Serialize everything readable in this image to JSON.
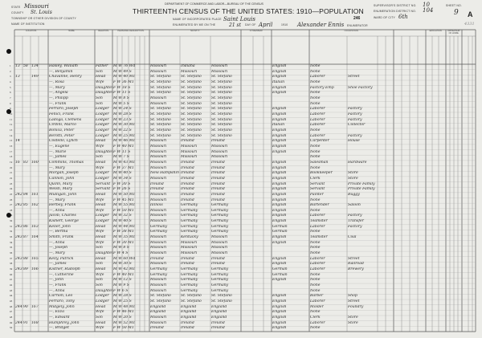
{
  "header": {
    "department": "DEPARTMENT OF COMMERCE AND LABOR—BUREAU OF THE CENSUS",
    "title": "THIRTEENTH CENSUS OF THE UNITED STATES: 1910—POPULATION",
    "state_label": "STATE",
    "state": "Missouri",
    "county_label": "COUNTY",
    "county": "St. Louis",
    "township_label": "TOWNSHIP OR OTHER DIVISION OF COUNTY",
    "institution_label": "NAME OF INSTITUTION",
    "place_label": "NAME OF INCORPORATED PLACE",
    "place": "Saint Louis",
    "enumerated_label": "ENUMERATED BY ME ON THE",
    "enumerated_day": "21 st",
    "day_label": "DAY OF",
    "month": "April",
    "year_suffix": "1910",
    "enumerator": "Alexander Ennis",
    "enumerator_label": "ENUMERATOR",
    "supervisor_district_label": "SUPERVISOR'S DISTRICT NO.",
    "supervisor_district": "10",
    "enumeration_district_label": "ENUMERATION DISTRICT NO.",
    "enumeration_district": "104",
    "ward_label": "WARD OF CITY",
    "ward": "6th",
    "stamp_number": "246",
    "sheet_label": "SHEET NO.",
    "sheet_number": "9",
    "sheet_letter": "A",
    "corner_note": "4331"
  },
  "column_groups": [
    "LOCATION.",
    "NAME",
    "RELATION.",
    "PERSONAL DESCRIPTION.",
    "NATIVITY.",
    "CITIZENSHIP.",
    "",
    "OCCUPATION.",
    "",
    "EDUCATION.",
    "OWNERSHIP OF HOME.",
    ""
  ],
  "rows": [
    [
      "13",
      "58",
      "134",
      "Hasley, William",
      "Father",
      "M W 76 Wd",
      "Missouri",
      "Indiana",
      "Missouri",
      "English",
      "None",
      ""
    ],
    [
      "",
      "",
      "",
      "—, Benjamin",
      "Son",
      "M W 49 S",
      "Missouri",
      "Missouri",
      "Missouri",
      "English",
      "None",
      ""
    ],
    [
      "13",
      "",
      "149",
      "Chavanne, Henry",
      "Head",
      "M W 40 M1",
      "St. Stefano",
      "St. Stefano",
      "St. Stefano",
      "English",
      "Laborer",
      "Street"
    ],
    [
      "",
      "",
      "",
      "—, Rosa",
      "Wife",
      "F W 36 M1",
      "St. Stefano",
      "St. Stefano",
      "St. Stefano",
      "Italian",
      "None",
      ""
    ],
    [
      "",
      "",
      "",
      "—, Mary",
      "Daughter",
      "F W 18 S",
      "St. Stefano",
      "St. Stefano",
      "St. Stefano",
      "English",
      "Factory Emp",
      "Shoe Factory"
    ],
    [
      "",
      "",
      "",
      "—, Angela",
      "Daughter",
      "F W 11 S",
      "St. Stefano",
      "St. Stefano",
      "St. Stefano",
      "English",
      "None",
      ""
    ],
    [
      "",
      "",
      "",
      "—, Philipp",
      "Son",
      "M W 8 S",
      "Missouri",
      "St. Stefano",
      "St. Stefano",
      "",
      "None",
      ""
    ],
    [
      "",
      "",
      "",
      "—, Frank",
      "Son",
      "M W 5 S",
      "Missouri",
      "St. Stefano",
      "St. Stefano",
      "",
      "None",
      ""
    ],
    [
      "",
      "",
      "",
      "Ferraro, Joseph",
      "Lodger",
      "M W 24 S",
      "St. Stefano",
      "St. Stefano",
      "St. Stefano",
      "English",
      "Laborer",
      "Factory"
    ],
    [
      "",
      "",
      "",
      "Fenici, Frank",
      "Lodger",
      "M W 28 S",
      "St. Stefano",
      "St. Stefano",
      "St. Stefano",
      "English",
      "Laborer",
      "Factory"
    ],
    [
      "",
      "",
      "",
      "Ladoga, Clemens",
      "Lodger",
      "M W 23 S",
      "St. Stefano",
      "St. Stefano",
      "St. Stefano",
      "English",
      "Laborer",
      "Factory"
    ],
    [
      "",
      "",
      "",
      "Cirdini, Marco",
      "Lodger",
      "M W 30 M1",
      "St. Stefano",
      "St. Stefano",
      "St. Stefano",
      "Italian",
      "Laborer",
      "Collector"
    ],
    [
      "",
      "",
      "",
      "Bonica, Peter",
      "Lodger",
      "M W 22 S",
      "St. Stefano",
      "St. Stefano",
      "St. Stefano",
      "English",
      "None",
      ""
    ],
    [
      "",
      "",
      "",
      "Berotti, Peter",
      "Lodger",
      "M W 25 M1",
      "St. Stefano",
      "St. Stefano",
      "St. Stefano",
      "English",
      "Laborer",
      "Factory"
    ],
    [
      "14",
      "",
      "",
      "Costello, Lynch",
      "Head",
      "M W 46 M1",
      "Missouri",
      "Ireland",
      "Ireland",
      "English",
      "Carpenter",
      "House"
    ],
    [
      "",
      "",
      "",
      "—, Eugene",
      "Wife",
      "F W 40 M1",
      "Missouri",
      "Missouri",
      "Missouri",
      "English",
      "None",
      ""
    ],
    [
      "",
      "",
      "",
      "—, Marie",
      "Daughter",
      "F W 11 S",
      "Missouri",
      "Missouri",
      "Missouri",
      "English",
      "None",
      ""
    ],
    [
      "",
      "",
      "",
      "—, James",
      "Son",
      "M W 7 S",
      "Missouri",
      "Missouri",
      "Missouri",
      "",
      "None",
      ""
    ],
    [
      "16",
      "83",
      "160",
      "Commins, Thomas",
      "Head",
      "M W 43 M1",
      "Missouri",
      "Ireland",
      "Ireland",
      "English",
      "Salesman",
      "Hardware"
    ],
    [
      "",
      "",
      "",
      "—, Mary",
      "Wife",
      "F W 37 M1",
      "Missouri",
      "Ireland",
      "Ireland",
      "English",
      "None",
      ""
    ],
    [
      "",
      "",
      "",
      "Morgan, Joseph",
      "Lodger",
      "M W 40 S",
      "New Hampshire",
      "Ireland",
      "Ireland",
      "English",
      "Bookkeeper",
      "Store"
    ],
    [
      "",
      "",
      "",
      "Cannon, John",
      "Lodger",
      "M W 34 S",
      "Missouri",
      "Ireland",
      "Ireland",
      "English",
      "Clerk",
      "Store"
    ],
    [
      "",
      "",
      "",
      "Quinn, Mary",
      "Servant",
      "F W 30 S",
      "Ireland",
      "Ireland",
      "Ireland",
      "English",
      "Servant",
      "Private Family"
    ],
    [
      "",
      "",
      "",
      "Welsh, Mary",
      "Servant",
      "F W 26 S",
      "Ireland",
      "Ireland",
      "Ireland",
      "English",
      "Servant",
      "Private Family"
    ],
    [
      "2420",
      "84",
      "161",
      "Mulligan, John",
      "Head",
      "M W 50 M1",
      "Missouri",
      "Ireland",
      "Ireland",
      "English",
      "Painter",
      "Buggy"
    ],
    [
      "",
      "",
      "",
      "—, Mary",
      "Wife",
      "F W 45 M1",
      "Missouri",
      "Ireland",
      "Ireland",
      "English",
      "None",
      ""
    ],
    [
      "2426",
      "85",
      "162",
      "Herbey, Frank",
      "Head",
      "M W 55 M1",
      "Illinois",
      "Germany",
      "Germany",
      "English",
      "Bartender",
      "Saloon"
    ],
    [
      "",
      "",
      "",
      "—, Anna",
      "Wife",
      "F W 50 M1",
      "Missouri",
      "Germany",
      "Germany",
      "English",
      "None",
      ""
    ],
    [
      "",
      "",
      "",
      "Jacob, Charles",
      "Lodger",
      "M W 32 S",
      "Missouri",
      "Germany",
      "Germany",
      "English",
      "Laborer",
      "Factory"
    ],
    [
      "",
      "",
      "",
      "Kishert, George",
      "Lodger",
      "M W 40 S",
      "Missouri",
      "Germany",
      "Germany",
      "English",
      "Teamster",
      "Transfer"
    ],
    [
      "2430",
      "86",
      "163",
      "Keller, John",
      "Head",
      "M W 44 M1",
      "Germany",
      "Germany",
      "Germany",
      "German",
      "Laborer",
      "Factory"
    ],
    [
      "",
      "",
      "",
      "—, Bertha",
      "Wife",
      "F W 38 M1",
      "Germany",
      "Germany",
      "Germany",
      "German",
      "None",
      ""
    ],
    [
      "2432",
      "87",
      "164",
      "Smith, Frank",
      "Head",
      "M W 35 M1",
      "Missouri",
      "Kentucky",
      "Missouri",
      "English",
      "Teamster",
      "Coal"
    ],
    [
      "",
      "",
      "",
      "—, Anna",
      "Wife",
      "F W 30 M1",
      "Missouri",
      "Missouri",
      "Missouri",
      "English",
      "None",
      ""
    ],
    [
      "",
      "",
      "",
      "—, Joseph",
      "Son",
      "M W 8 S",
      "Missouri",
      "Missouri",
      "Missouri",
      "",
      "None",
      ""
    ],
    [
      "",
      "",
      "",
      "—, Mary",
      "Daughter",
      "F W 4 S",
      "Missouri",
      "Missouri",
      "Missouri",
      "",
      "None",
      ""
    ],
    [
      "2436",
      "88",
      "165",
      "Kelly, Patrick",
      "Head",
      "M W 60 Wd",
      "Ireland",
      "Ireland",
      "Ireland",
      "English",
      "Laborer",
      "Street"
    ],
    [
      "",
      "",
      "",
      "—, James",
      "Son",
      "M W 30 S",
      "Missouri",
      "Ireland",
      "Ireland",
      "English",
      "Laborer",
      "Railroad"
    ],
    [
      "2438",
      "89",
      "166",
      "Kistner, Rudolph",
      "Head",
      "M W 42 M1",
      "Germany",
      "Germany",
      "Germany",
      "German",
      "Laborer",
      "Brewery"
    ],
    [
      "",
      "",
      "",
      "—, Catherine",
      "Wife",
      "F W 40 M1",
      "Germany",
      "Germany",
      "Germany",
      "German",
      "None",
      ""
    ],
    [
      "",
      "",
      "",
      "—, John",
      "Son",
      "M W 12 S",
      "Missouri",
      "Germany",
      "Germany",
      "English",
      "None",
      ""
    ],
    [
      "",
      "",
      "",
      "—, Frank",
      "Son",
      "M W 9 S",
      "Missouri",
      "Germany",
      "Germany",
      "",
      "None",
      ""
    ],
    [
      "",
      "",
      "",
      "—, Anna",
      "Daughter",
      "F W 6 S",
      "Missouri",
      "Germany",
      "Germany",
      "",
      "None",
      ""
    ],
    [
      "",
      "",
      "",
      "Carrion, Leo",
      "Lodger",
      "M W 28 S",
      "St. Stefano",
      "St. Stefano",
      "St. Stefano",
      "English",
      "Barber",
      "Shop"
    ],
    [
      "",
      "",
      "",
      "Ferraro, Tony",
      "Lodger",
      "M W 25 S",
      "St. Stefano",
      "St. Stefano",
      "St. Stefano",
      "English",
      "Laborer",
      "Street"
    ],
    [
      "2440",
      "90",
      "167",
      "Midgely, John",
      "Head",
      "M W 48 M1",
      "England",
      "England",
      "England",
      "English",
      "Molder",
      "Foundry"
    ],
    [
      "",
      "",
      "",
      "—, Eliza",
      "Wife",
      "F W 46 M1",
      "England",
      "England",
      "England",
      "English",
      "None",
      ""
    ],
    [
      "",
      "",
      "",
      "—, Edward",
      "Son",
      "M W 20 S",
      "Missouri",
      "England",
      "England",
      "English",
      "Clerk",
      "Store"
    ],
    [
      "2444",
      "91",
      "168",
      "Humphrey, John",
      "Head",
      "M W 52 M1",
      "Missouri",
      "Ireland",
      "Ireland",
      "English",
      "Laborer",
      "Store"
    ],
    [
      "",
      "",
      "",
      "—, Bridget",
      "Wife",
      "F W 50 M1",
      "Ireland",
      "Ireland",
      "Ireland",
      "English",
      "None",
      ""
    ]
  ],
  "colors": {
    "paper": "#ecece8",
    "ink": "#2b2b2b",
    "rule": "#555555"
  }
}
